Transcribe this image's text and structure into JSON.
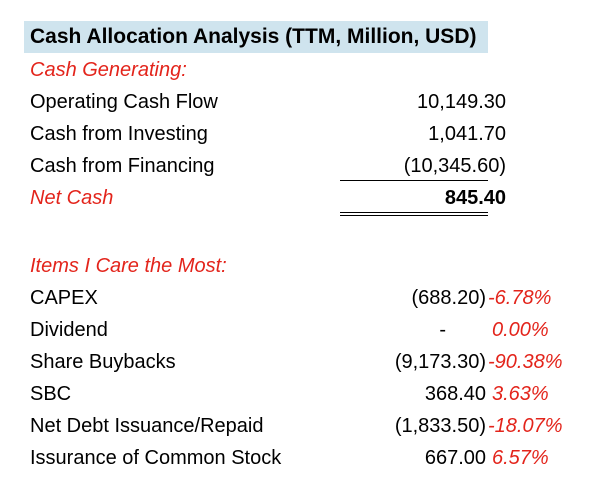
{
  "title": "Cash Allocation Analysis (TTM, Million, USD)",
  "cash_generating": {
    "heading": "Cash Generating:",
    "rows": [
      {
        "label": "Operating Cash Flow",
        "value": "10,149.30"
      },
      {
        "label": "Cash from Investing",
        "value": "1,041.70"
      },
      {
        "label": "Cash from Financing",
        "value": "(10,345.60)"
      }
    ],
    "net": {
      "label": "Net Cash",
      "value": "845.40"
    }
  },
  "items": {
    "heading": "Items I Care the Most:",
    "rows": [
      {
        "label": "CAPEX",
        "value": "(688.20)",
        "pct": "-6.78%"
      },
      {
        "label": "Dividend",
        "value": "-",
        "pct": "0.00%"
      },
      {
        "label": "Share Buybacks",
        "value": "(9,173.30)",
        "pct": "-90.38%"
      },
      {
        "label": "SBC",
        "value": "368.40",
        "pct": "3.63%"
      },
      {
        "label": "Net Debt Issuance/Repaid",
        "value": "(1,833.50)",
        "pct": "-18.07%"
      },
      {
        "label": "Issurance of Common Stock",
        "value": "667.00",
        "pct": "6.57%"
      }
    ]
  }
}
